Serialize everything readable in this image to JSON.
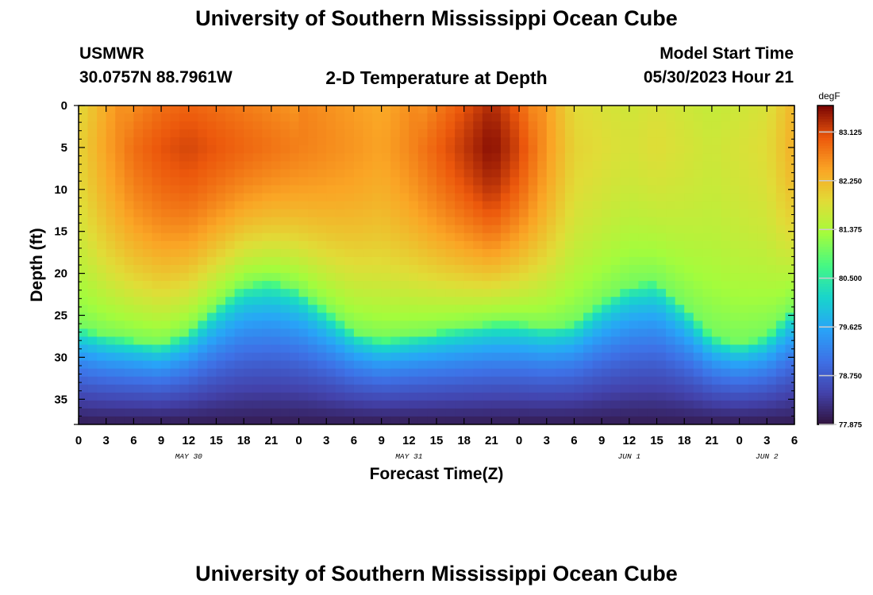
{
  "page": {
    "title": "University of Southern Mississippi Ocean Cube",
    "station": "USMWR",
    "coords": "30.0757N  88.7961W",
    "plot_title": "2-D Temperature at Depth",
    "model_start_label": "Model Start Time",
    "model_start_value": "05/30/2023 Hour 21",
    "footer_title": "University of Southern Mississippi Ocean Cube"
  },
  "chart_data": {
    "type": "heatmap",
    "title": "2-D Temperature at Depth",
    "xlabel": "Forecast Time(Z)",
    "ylabel": "Depth (ft)",
    "x_tick_labels": [
      "0",
      "3",
      "6",
      "9",
      "12",
      "15",
      "18",
      "21",
      "0",
      "3",
      "6",
      "9",
      "12",
      "15",
      "18",
      "21",
      "0",
      "3",
      "6",
      "9",
      "12",
      "15",
      "18",
      "21",
      "0",
      "3",
      "6"
    ],
    "x_range_hours": [
      0,
      78
    ],
    "date_labels": [
      {
        "text": "MAY 30",
        "hour": 12
      },
      {
        "text": "MAY 31",
        "hour": 36
      },
      {
        "text": "JUN 1",
        "hour": 60
      },
      {
        "text": "JUN 2",
        "hour": 75
      }
    ],
    "y_tick_labels": [
      "0",
      "5",
      "10",
      "15",
      "20",
      "25",
      "30",
      "35"
    ],
    "y_range_ft": [
      0,
      38
    ],
    "y_inverted": true,
    "colorbar": {
      "unit": "degF",
      "tick_labels": [
        "83.125",
        "82.250",
        "81.375",
        "80.500",
        "79.625",
        "78.750",
        "77.875"
      ],
      "range": [
        77.875,
        83.6
      ]
    },
    "field_description": {
      "x_hours": [
        0,
        3,
        6,
        9,
        12,
        15,
        18,
        21,
        24,
        27,
        30,
        33,
        36,
        39,
        42,
        45,
        48,
        51,
        54,
        57,
        60,
        63,
        66,
        69,
        72,
        75,
        78
      ],
      "surface_temp": [
        82.0,
        82.5,
        82.9,
        83.1,
        83.2,
        83.1,
        83.0,
        82.9,
        82.8,
        82.7,
        82.6,
        82.5,
        82.7,
        83.0,
        83.3,
        83.6,
        83.2,
        82.6,
        82.0,
        81.9,
        81.8,
        81.9,
        81.8,
        81.7,
        81.8,
        81.9,
        82.4
      ],
      "thermocline_depth_ft": [
        26.5,
        27.5,
        28.0,
        28.5,
        27.0,
        24.0,
        21.5,
        21.0,
        22.0,
        24.5,
        27.0,
        28.0,
        27.5,
        27.0,
        26.5,
        26.0,
        26.0,
        26.5,
        26.0,
        23.5,
        21.5,
        21.0,
        24.0,
        27.5,
        28.5,
        27.5,
        24.0
      ]
    },
    "grid": false
  }
}
